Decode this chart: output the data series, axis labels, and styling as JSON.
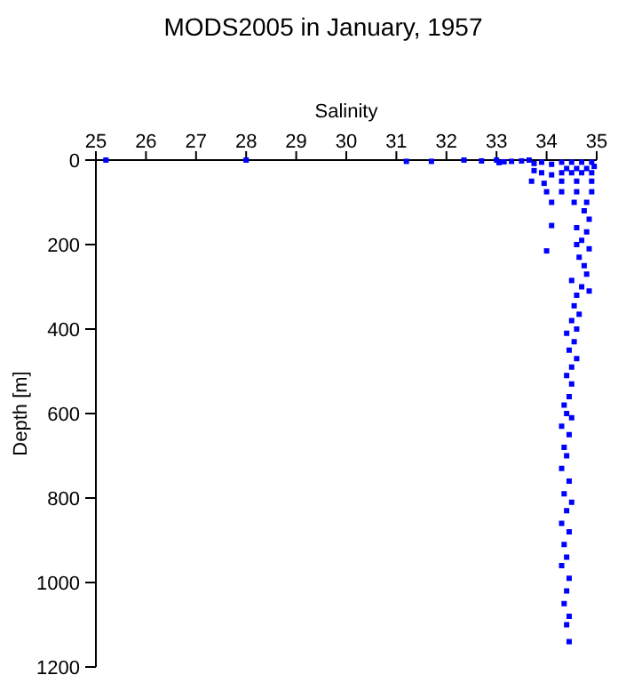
{
  "chart_data": {
    "type": "scatter",
    "title": "MODS2005 in January, 1957",
    "xlabel": "Salinity",
    "ylabel": "Depth [m]",
    "xlim": [
      25,
      35
    ],
    "xticks": [
      25,
      26,
      27,
      28,
      29,
      30,
      31,
      32,
      33,
      34,
      35
    ],
    "ylim": [
      1200,
      0
    ],
    "yticks": [
      0,
      200,
      400,
      600,
      800,
      1000,
      1200
    ],
    "grid": false,
    "marker": "square",
    "series": [
      {
        "color": "#0000ff",
        "x": [
          25.2,
          28.0,
          31.2,
          31.7,
          32.35,
          32.7,
          33.0,
          33.05,
          33.15,
          33.3,
          33.5,
          33.65,
          33.75,
          33.9,
          34.1,
          34.3,
          34.5,
          34.7,
          34.9,
          34.4,
          34.6,
          34.8,
          34.95,
          34.3,
          34.5,
          34.7,
          34.9,
          33.75,
          33.9,
          34.1,
          33.7,
          33.95,
          34.3,
          34.6,
          34.9,
          34.0,
          34.3,
          34.6,
          34.9,
          34.1,
          34.55,
          34.8,
          34.75,
          34.85,
          34.1,
          34.6,
          34.8,
          34.7,
          34.6,
          34.85,
          34.0,
          34.65,
          34.75,
          34.8,
          34.5,
          34.7,
          34.85,
          34.6,
          34.55,
          34.65,
          34.5,
          34.6,
          34.4,
          34.55,
          34.45,
          34.6,
          34.5,
          34.4,
          34.5,
          34.45,
          34.35,
          34.4,
          34.5,
          34.3,
          34.45,
          34.35,
          34.4,
          34.3,
          34.45,
          34.35,
          34.5,
          34.4,
          34.3,
          34.45,
          34.35,
          34.4,
          34.3,
          34.45,
          34.4,
          34.35,
          34.45,
          34.4,
          34.45
        ],
        "values": [
          0,
          0,
          3,
          3,
          0,
          2,
          0,
          6,
          4,
          3,
          2,
          0,
          8,
          5,
          10,
          5,
          5,
          5,
          5,
          20,
          20,
          20,
          15,
          30,
          30,
          30,
          30,
          25,
          30,
          35,
          50,
          55,
          50,
          50,
          50,
          75,
          75,
          75,
          75,
          100,
          100,
          100,
          120,
          140,
          155,
          160,
          170,
          190,
          200,
          210,
          215,
          230,
          250,
          270,
          285,
          300,
          310,
          320,
          345,
          365,
          380,
          400,
          410,
          430,
          450,
          470,
          490,
          510,
          530,
          560,
          580,
          600,
          610,
          630,
          650,
          680,
          700,
          730,
          760,
          790,
          810,
          830,
          860,
          880,
          910,
          940,
          960,
          990,
          1020,
          1050,
          1080,
          1100,
          1140
        ]
      }
    ]
  }
}
